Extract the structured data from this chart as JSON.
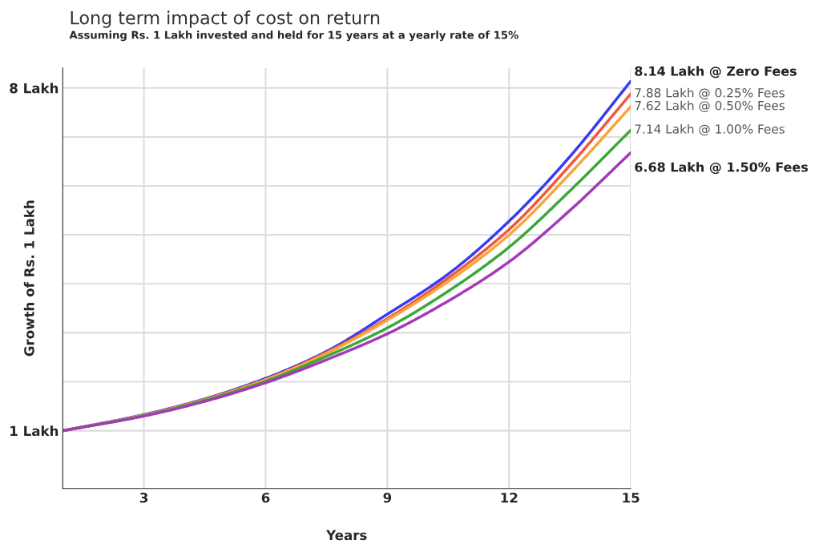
{
  "chart_data": {
    "type": "line",
    "title": "Long term impact of cost on return",
    "subtitle": "Assuming Rs. 1 Lakh invested and held for 15 years at a yearly rate of 15%",
    "xlabel": "Years",
    "ylabel": "Growth of Rs. 1 Lakh",
    "x": [
      1,
      3,
      4.5,
      6,
      7.5,
      9,
      10.5,
      12,
      13.5,
      15
    ],
    "series": [
      {
        "color": "#3a3af0",
        "values": [
          1.0,
          1.33,
          1.65,
          2.07,
          2.62,
          3.38,
          4.2,
          5.28,
          6.6,
          8.14
        ]
      },
      {
        "color": "#ef5a3c",
        "values": [
          1.0,
          1.32,
          1.64,
          2.05,
          2.6,
          3.29,
          4.12,
          5.11,
          6.42,
          7.88
        ]
      },
      {
        "color": "#f8a53a",
        "values": [
          1.0,
          1.32,
          1.63,
          2.04,
          2.58,
          3.26,
          4.05,
          5.0,
          6.25,
          7.62
        ]
      },
      {
        "color": "#3aa83a",
        "values": [
          1.0,
          1.31,
          1.62,
          2.01,
          2.52,
          3.1,
          3.85,
          4.75,
          5.9,
          7.14
        ]
      },
      {
        "color": "#a33ab8",
        "values": [
          1.0,
          1.3,
          1.6,
          1.98,
          2.45,
          2.98,
          3.65,
          4.45,
          5.5,
          6.68
        ]
      }
    ],
    "annotations": [
      "8.14 Lakh @ Zero Fees",
      "7.88 Lakh @ 0.25% Fees",
      "7.62 Lakh @ 0.50% Fees",
      "7.14 Lakh @ 1.00% Fees",
      "6.68 Lakh @ 1.50% Fees"
    ],
    "xlim": [
      1,
      15
    ],
    "xticks": [
      3,
      6,
      9,
      12,
      15
    ],
    "ylim": [
      -0.18,
      8.41
    ],
    "yticks": [
      {
        "value": 1,
        "label": "1 Lakh"
      },
      {
        "value": 2,
        "label": null
      },
      {
        "value": 3,
        "label": null
      },
      {
        "value": 4,
        "label": null
      },
      {
        "value": 5,
        "label": null
      },
      {
        "value": 6,
        "label": null
      },
      {
        "value": 7,
        "label": null
      },
      {
        "value": 8,
        "label": "8 Lakh"
      }
    ],
    "grid": true,
    "legend": false,
    "marker": "none",
    "line_style": "solid"
  }
}
